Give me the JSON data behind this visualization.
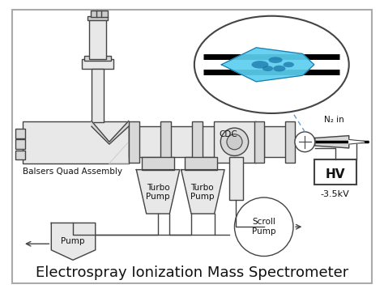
{
  "title": "Electrospray Ionization Mass Spectrometer",
  "bg_color": "#ffffff",
  "line_color": "#444444",
  "text_color": "#111111",
  "gray_fill": "#e8e8e8",
  "gray_dark": "#cccccc",
  "gray_med": "#d8d8d8",
  "blue_light": "#5bcfef",
  "blue_dark": "#1a77aa",
  "label_balsers": "Balsers Quad Assembly",
  "label_turbo1": "Turbo\nPump",
  "label_turbo2": "Turbo\nPump",
  "label_scroll": "Scroll\nPump",
  "label_pump": "Pump",
  "label_cdc": "CDC",
  "label_hv": "HV",
  "label_voltage": "-3.5kV",
  "label_n2": "N₂ in"
}
